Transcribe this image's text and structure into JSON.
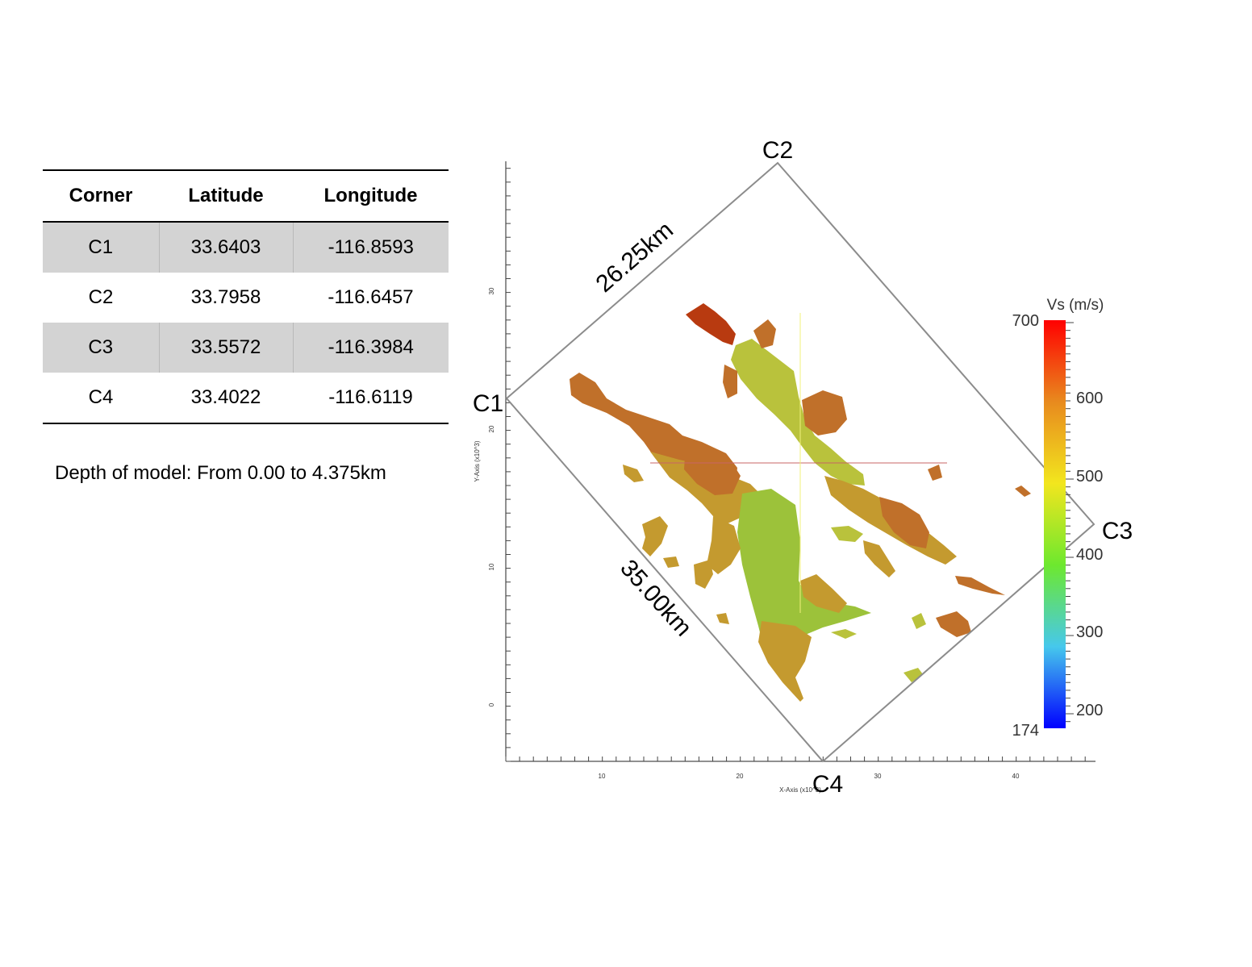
{
  "table": {
    "headers": [
      "Corner",
      "Latitude",
      "Longitude"
    ],
    "rows": [
      {
        "corner": "C1",
        "latitude": "33.6403",
        "longitude": "-116.8593"
      },
      {
        "corner": "C2",
        "latitude": "33.7958",
        "longitude": "-116.6457"
      },
      {
        "corner": "C3",
        "latitude": "33.5572",
        "longitude": "-116.3984"
      },
      {
        "corner": "C4",
        "latitude": "33.4022",
        "longitude": "-116.6119"
      }
    ]
  },
  "depth_note": "Depth of model: From 0.00 to 4.375km",
  "map": {
    "corner_labels": {
      "c1": "C1",
      "c2": "C2",
      "c3": "C3",
      "c4": "C4"
    },
    "edge_labels": {
      "c1_c2": "26.25km",
      "c1_c4": "35.00km"
    },
    "x_axis": {
      "title": "X-Axis (x10^3)",
      "ticks": [
        "10",
        "20",
        "30",
        "40"
      ]
    },
    "y_axis": {
      "title": "Y-Axis (x10^3)",
      "ticks": [
        "0",
        "10",
        "20",
        "30"
      ]
    },
    "colorbar": {
      "title": "Vs (m/s)",
      "min_label": "174",
      "max_label": "700",
      "tick_labels": [
        "600",
        "500",
        "400",
        "300",
        "200"
      ],
      "colors": [
        "#ff0000",
        "#e88a1e",
        "#f2e61e",
        "#6de82e",
        "#46c8ec",
        "#0000ff"
      ]
    },
    "colors": {
      "outline": "#8c8c8c",
      "dark_red": "#b83a10",
      "brown_orange": "#c0702a",
      "ochre": "#c49a2f",
      "yellow_green": "#b9c23c",
      "light_green": "#9cc23a",
      "section_line_h": "#c86464",
      "section_line_v": "#f0f07a"
    }
  }
}
